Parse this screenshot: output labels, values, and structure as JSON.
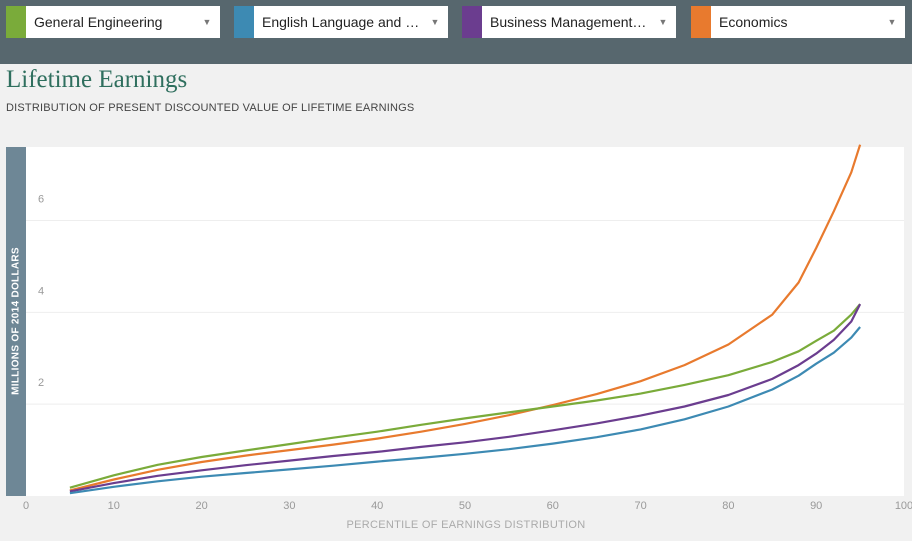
{
  "selectors": [
    {
      "label": "General Engineering",
      "color": "#7aab3a",
      "caret": "▼"
    },
    {
      "label": "English Language and L…",
      "color": "#3d8ab3",
      "caret": "▼"
    },
    {
      "label": "Business Management …",
      "color": "#6b3d8f",
      "caret": "▼"
    },
    {
      "label": "Economics",
      "color": "#e87a2e",
      "caret": "▼"
    }
  ],
  "chart_data": {
    "type": "line",
    "title": "Lifetime Earnings",
    "subtitle": "DISTRIBUTION OF PRESENT DISCOUNTED VALUE OF LIFETIME EARNINGS",
    "xlabel": "PERCENTILE OF EARNINGS DISTRIBUTION",
    "ylabel": "MILLIONS OF 2014 DOLLARS",
    "xlim": [
      0,
      100
    ],
    "ylim": [
      0,
      7.6
    ],
    "xticks": [
      0,
      10,
      20,
      30,
      40,
      50,
      60,
      70,
      80,
      90,
      100
    ],
    "yticks": [
      2,
      4,
      6
    ],
    "grid": true,
    "x": [
      5,
      10,
      15,
      20,
      25,
      30,
      35,
      40,
      45,
      50,
      55,
      60,
      65,
      70,
      75,
      80,
      85,
      88,
      90,
      92,
      94,
      95
    ],
    "series": [
      {
        "color": "#e87a2e",
        "values": [
          0.12,
          0.36,
          0.57,
          0.74,
          0.88,
          1.0,
          1.12,
          1.25,
          1.4,
          1.57,
          1.76,
          1.98,
          2.22,
          2.5,
          2.85,
          3.3,
          3.95,
          4.65,
          5.4,
          6.2,
          7.05,
          7.65
        ]
      },
      {
        "color": "#7aab3a",
        "values": [
          0.18,
          0.45,
          0.68,
          0.85,
          0.99,
          1.13,
          1.27,
          1.4,
          1.55,
          1.69,
          1.82,
          1.95,
          2.08,
          2.23,
          2.42,
          2.63,
          2.92,
          3.15,
          3.38,
          3.6,
          3.95,
          4.18
        ]
      },
      {
        "color": "#6b3d8f",
        "values": [
          0.1,
          0.28,
          0.44,
          0.56,
          0.67,
          0.77,
          0.87,
          0.96,
          1.07,
          1.17,
          1.29,
          1.43,
          1.58,
          1.75,
          1.95,
          2.2,
          2.55,
          2.85,
          3.1,
          3.4,
          3.8,
          4.18
        ]
      },
      {
        "color": "#3d8ab3",
        "values": [
          0.06,
          0.2,
          0.32,
          0.42,
          0.5,
          0.58,
          0.66,
          0.75,
          0.83,
          0.92,
          1.02,
          1.14,
          1.28,
          1.45,
          1.67,
          1.95,
          2.32,
          2.62,
          2.88,
          3.12,
          3.45,
          3.68
        ]
      }
    ]
  }
}
